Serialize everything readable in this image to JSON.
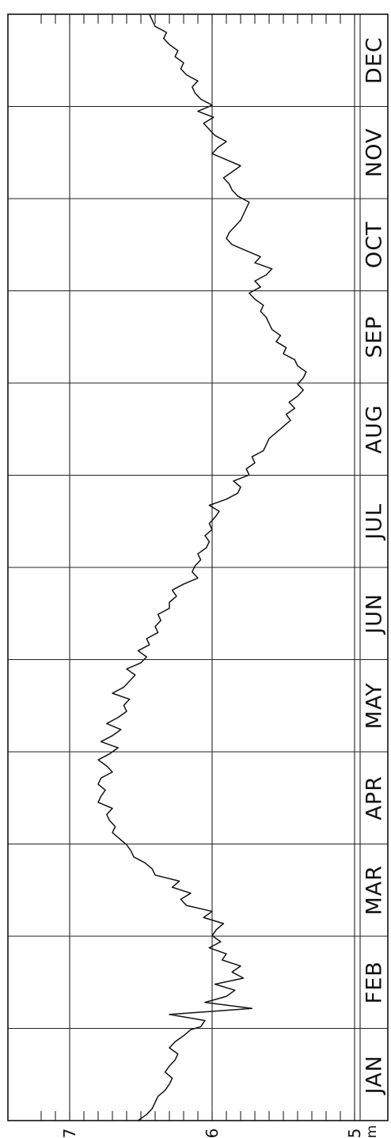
{
  "chart_data": {
    "type": "line",
    "orientation": "rotated-90",
    "xlabel": "",
    "ylabel": "",
    "y_unit": "m",
    "y_ticks": [
      "5",
      "6",
      "7"
    ],
    "ylim": [
      5,
      7.2
    ],
    "x_range_days": [
      0,
      365
    ],
    "grid": true,
    "months": [
      "JAN",
      "FEB",
      "MAR",
      "APR",
      "MAY",
      "JUN",
      "JUL",
      "AUG",
      "SEP",
      "OCT",
      "NOV",
      "DEC"
    ],
    "series": [
      {
        "x": [
          0,
          2,
          4,
          6,
          8,
          10,
          12,
          14,
          16,
          18,
          20,
          22,
          24,
          26,
          28,
          30,
          31,
          33,
          35,
          37,
          39,
          41,
          43,
          45,
          47,
          49,
          51,
          53,
          55,
          57,
          59,
          61,
          63,
          65,
          67,
          69,
          71,
          73,
          75,
          77,
          79,
          81,
          83,
          85,
          87,
          89,
          91,
          93,
          95,
          97,
          99,
          101,
          103,
          105,
          107,
          109,
          111,
          113,
          115,
          117,
          119,
          121,
          123,
          125,
          127,
          129,
          131,
          133,
          135,
          137,
          139,
          141,
          143,
          145,
          147,
          149,
          151,
          153,
          155,
          157,
          159,
          161,
          163,
          165,
          167,
          169,
          171,
          173,
          175,
          177,
          179,
          181,
          183,
          185,
          187,
          189,
          191,
          193,
          195,
          197,
          199,
          201,
          203,
          205,
          207,
          209,
          211,
          213,
          215,
          217,
          219,
          221,
          223,
          225,
          227,
          229,
          231,
          233,
          235,
          237,
          239,
          241,
          243,
          245,
          247,
          249,
          251,
          253,
          255,
          257,
          259,
          261,
          263,
          265,
          267,
          269,
          271,
          273,
          275,
          277,
          279,
          281,
          283,
          285,
          287,
          289,
          291,
          293,
          295,
          297,
          299,
          301,
          303,
          305,
          307,
          309,
          311,
          313,
          315,
          317,
          319,
          321,
          323,
          325,
          327,
          329,
          331,
          333,
          335,
          337,
          339,
          341,
          343,
          345,
          347,
          349,
          351,
          353,
          355,
          357,
          359,
          361,
          363,
          365
        ],
        "y": [
          6.52,
          6.46,
          6.42,
          6.4,
          6.38,
          6.33,
          6.3,
          6.28,
          6.33,
          6.3,
          6.26,
          6.24,
          6.3,
          6.26,
          6.2,
          6.15,
          6.08,
          6.05,
          6.3,
          5.72,
          6.05,
          5.9,
          5.84,
          5.98,
          5.78,
          5.86,
          5.8,
          5.93,
          5.9,
          6.02,
          5.94,
          6.0,
          5.97,
          5.92,
          6.06,
          6.0,
          6.18,
          6.22,
          6.15,
          6.28,
          6.23,
          6.4,
          6.42,
          6.47,
          6.55,
          6.57,
          6.6,
          6.65,
          6.7,
          6.68,
          6.72,
          6.74,
          6.7,
          6.8,
          6.78,
          6.75,
          6.8,
          6.78,
          6.7,
          6.74,
          6.8,
          6.72,
          6.66,
          6.78,
          6.7,
          6.64,
          6.74,
          6.66,
          6.6,
          6.62,
          6.58,
          6.7,
          6.62,
          6.58,
          6.54,
          6.6,
          6.5,
          6.46,
          6.52,
          6.44,
          6.46,
          6.38,
          6.4,
          6.36,
          6.38,
          6.3,
          6.3,
          6.25,
          6.28,
          6.2,
          6.1,
          6.14,
          6.12,
          6.08,
          6.1,
          6.04,
          6.02,
          6.05,
          6.0,
          6.02,
          5.98,
          5.95,
          6.02,
          5.9,
          5.82,
          5.8,
          5.85,
          5.74,
          5.76,
          5.7,
          5.72,
          5.64,
          5.62,
          5.6,
          5.55,
          5.5,
          5.45,
          5.48,
          5.42,
          5.46,
          5.4,
          5.36,
          5.4,
          5.36,
          5.34,
          5.4,
          5.42,
          5.5,
          5.48,
          5.55,
          5.52,
          5.58,
          5.6,
          5.62,
          5.66,
          5.64,
          5.7,
          5.74,
          5.66,
          5.7,
          5.62,
          5.58,
          5.7,
          5.66,
          5.76,
          5.86,
          5.9,
          5.88,
          5.84,
          5.8,
          5.78,
          5.76,
          5.74,
          5.82,
          5.86,
          5.88,
          5.92,
          5.86,
          5.8,
          5.9,
          6.0,
          5.96,
          5.9,
          5.98,
          6.02,
          6.06,
          5.99,
          6.1,
          6.0,
          6.08,
          6.12,
          6.14,
          6.1,
          6.18,
          6.22,
          6.2,
          6.26,
          6.24,
          6.3,
          6.34,
          6.32,
          6.4,
          6.42,
          6.44
        ]
      }
    ]
  }
}
